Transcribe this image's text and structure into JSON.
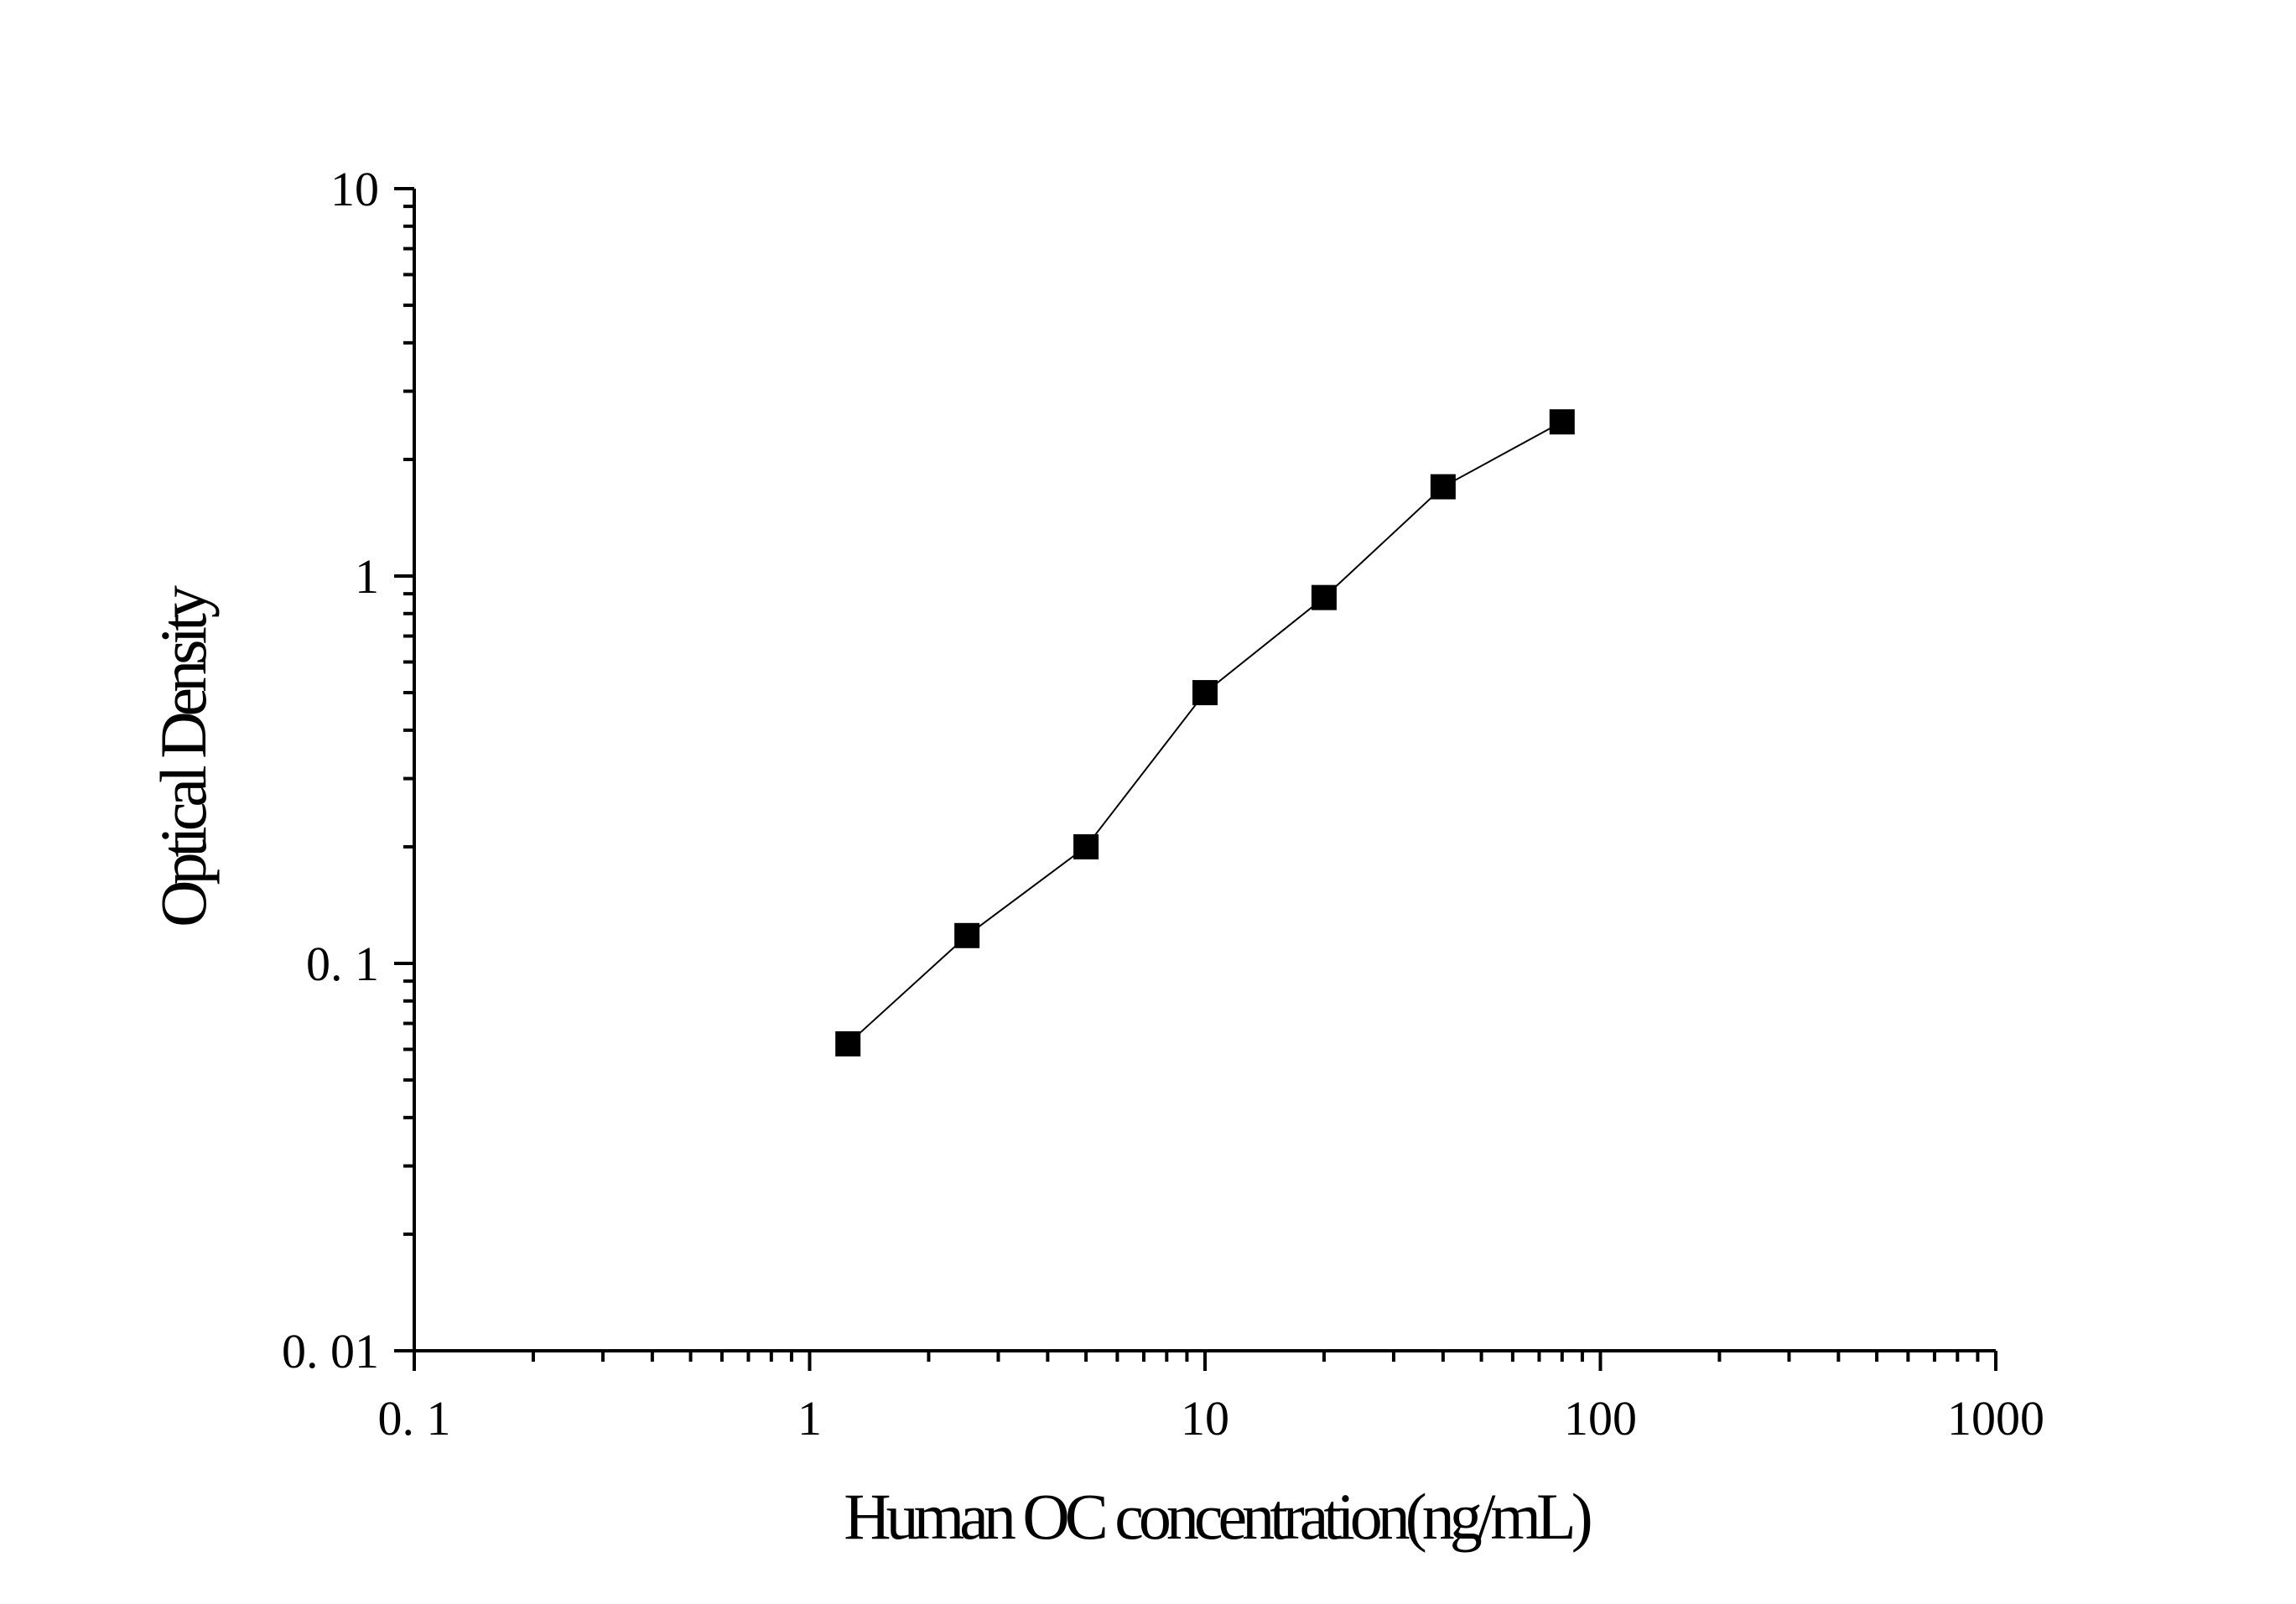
{
  "chart_data": {
    "type": "scatter",
    "title": "",
    "xlabel": "Human OC concentration(ng/mL)",
    "ylabel": "Optical Density",
    "xscale": "log",
    "yscale": "log",
    "xlim": [
      0.1,
      1000
    ],
    "ylim": [
      0.01,
      10
    ],
    "xticks": [
      "0. 1",
      "1",
      "10",
      "100",
      "1000"
    ],
    "yticks": [
      "0. 01",
      "0. 1",
      "1",
      "10"
    ],
    "grid": false,
    "legend": "none",
    "series": [
      {
        "marker": "square",
        "connected": true,
        "color": "#000000",
        "x": [
          1.25,
          2.5,
          5,
          10,
          20,
          40,
          80
        ],
        "y": [
          0.062,
          0.118,
          0.2,
          0.5,
          0.88,
          1.7,
          2.5
        ]
      }
    ]
  }
}
